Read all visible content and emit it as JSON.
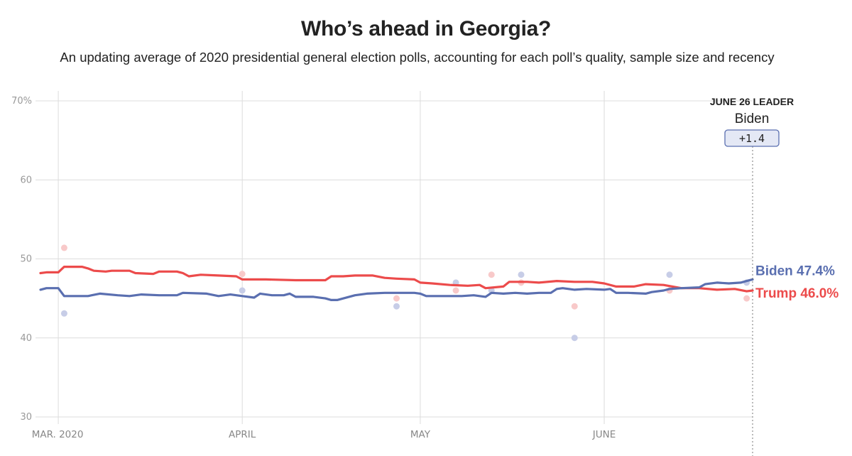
{
  "header": {
    "title": "Who’s ahead in Georgia?",
    "subtitle": "An updating average of 2020 presidential general election polls, accounting for each poll’s quality, sample size and recency"
  },
  "leader_box": {
    "heading": "JUNE 26 LEADER",
    "name": "Biden",
    "margin": "+1.4"
  },
  "colors": {
    "biden": "#5a6fb0",
    "trump": "#ec4b4b",
    "biden_poll": "#c7cde7",
    "trump_poll": "#f8c9c9",
    "grid": "#dcdcdc",
    "box_fill": "#e4e8f5"
  },
  "chart_data": {
    "type": "line",
    "title": "Who’s ahead in Georgia?",
    "ylim": [
      30,
      70
    ],
    "yticks": [
      30,
      40,
      50,
      60,
      70
    ],
    "ytick_labels": [
      "30",
      "40",
      "50",
      "60",
      "70%"
    ],
    "xlim": [
      "2020-02-27",
      "2020-06-26"
    ],
    "xticks": [
      {
        "date": "2020-03-01",
        "label": "MAR. 2020"
      },
      {
        "date": "2020-04-01",
        "label": "APRIL"
      },
      {
        "date": "2020-05-01",
        "label": "MAY"
      },
      {
        "date": "2020-06-01",
        "label": "JUNE"
      }
    ],
    "series": [
      {
        "name": "Biden",
        "end_label": "Biden 47.4%",
        "points": [
          [
            "2020-02-27",
            46.1
          ],
          [
            "2020-02-28",
            46.3
          ],
          [
            "2020-03-01",
            46.3
          ],
          [
            "2020-03-02",
            45.3
          ],
          [
            "2020-03-06",
            45.3
          ],
          [
            "2020-03-08",
            45.6
          ],
          [
            "2020-03-11",
            45.4
          ],
          [
            "2020-03-13",
            45.3
          ],
          [
            "2020-03-15",
            45.5
          ],
          [
            "2020-03-18",
            45.4
          ],
          [
            "2020-03-21",
            45.4
          ],
          [
            "2020-03-22",
            45.7
          ],
          [
            "2020-03-26",
            45.6
          ],
          [
            "2020-03-28",
            45.3
          ],
          [
            "2020-03-30",
            45.5
          ],
          [
            "2020-04-01",
            45.3
          ],
          [
            "2020-04-03",
            45.1
          ],
          [
            "2020-04-04",
            45.6
          ],
          [
            "2020-04-06",
            45.4
          ],
          [
            "2020-04-08",
            45.4
          ],
          [
            "2020-04-09",
            45.6
          ],
          [
            "2020-04-10",
            45.2
          ],
          [
            "2020-04-13",
            45.2
          ],
          [
            "2020-04-15",
            45.0
          ],
          [
            "2020-04-16",
            44.8
          ],
          [
            "2020-04-17",
            44.8
          ],
          [
            "2020-04-20",
            45.4
          ],
          [
            "2020-04-22",
            45.6
          ],
          [
            "2020-04-25",
            45.7
          ],
          [
            "2020-04-30",
            45.7
          ],
          [
            "2020-05-01",
            45.6
          ],
          [
            "2020-05-02",
            45.3
          ],
          [
            "2020-05-05",
            45.3
          ],
          [
            "2020-05-08",
            45.3
          ],
          [
            "2020-05-10",
            45.4
          ],
          [
            "2020-05-12",
            45.2
          ],
          [
            "2020-05-13",
            45.7
          ],
          [
            "2020-05-15",
            45.6
          ],
          [
            "2020-05-17",
            45.7
          ],
          [
            "2020-05-19",
            45.6
          ],
          [
            "2020-05-21",
            45.7
          ],
          [
            "2020-05-23",
            45.7
          ],
          [
            "2020-05-24",
            46.2
          ],
          [
            "2020-05-25",
            46.3
          ],
          [
            "2020-05-27",
            46.1
          ],
          [
            "2020-05-29",
            46.2
          ],
          [
            "2020-06-01",
            46.1
          ],
          [
            "2020-06-02",
            46.2
          ],
          [
            "2020-06-03",
            45.7
          ],
          [
            "2020-06-05",
            45.7
          ],
          [
            "2020-06-08",
            45.6
          ],
          [
            "2020-06-09",
            45.8
          ],
          [
            "2020-06-11",
            46.0
          ],
          [
            "2020-06-12",
            46.2
          ],
          [
            "2020-06-14",
            46.3
          ],
          [
            "2020-06-17",
            46.4
          ],
          [
            "2020-06-18",
            46.8
          ],
          [
            "2020-06-20",
            47.0
          ],
          [
            "2020-06-22",
            46.9
          ],
          [
            "2020-06-24",
            47.0
          ],
          [
            "2020-06-25",
            47.2
          ],
          [
            "2020-06-26",
            47.4
          ]
        ]
      },
      {
        "name": "Trump",
        "end_label": "Trump 46.0%",
        "points": [
          [
            "2020-02-27",
            48.2
          ],
          [
            "2020-02-28",
            48.3
          ],
          [
            "2020-03-01",
            48.3
          ],
          [
            "2020-03-02",
            49.0
          ],
          [
            "2020-03-05",
            49.0
          ],
          [
            "2020-03-06",
            48.8
          ],
          [
            "2020-03-07",
            48.5
          ],
          [
            "2020-03-09",
            48.4
          ],
          [
            "2020-03-10",
            48.5
          ],
          [
            "2020-03-13",
            48.5
          ],
          [
            "2020-03-14",
            48.2
          ],
          [
            "2020-03-17",
            48.1
          ],
          [
            "2020-03-18",
            48.4
          ],
          [
            "2020-03-21",
            48.4
          ],
          [
            "2020-03-22",
            48.2
          ],
          [
            "2020-03-23",
            47.8
          ],
          [
            "2020-03-25",
            48.0
          ],
          [
            "2020-03-28",
            47.9
          ],
          [
            "2020-03-31",
            47.8
          ],
          [
            "2020-04-01",
            47.4
          ],
          [
            "2020-04-05",
            47.4
          ],
          [
            "2020-04-10",
            47.3
          ],
          [
            "2020-04-15",
            47.3
          ],
          [
            "2020-04-16",
            47.8
          ],
          [
            "2020-04-18",
            47.8
          ],
          [
            "2020-04-20",
            47.9
          ],
          [
            "2020-04-23",
            47.9
          ],
          [
            "2020-04-25",
            47.6
          ],
          [
            "2020-04-27",
            47.5
          ],
          [
            "2020-04-30",
            47.4
          ],
          [
            "2020-05-01",
            47.0
          ],
          [
            "2020-05-03",
            46.9
          ],
          [
            "2020-05-06",
            46.7
          ],
          [
            "2020-05-09",
            46.6
          ],
          [
            "2020-05-11",
            46.7
          ],
          [
            "2020-05-12",
            46.3
          ],
          [
            "2020-05-15",
            46.5
          ],
          [
            "2020-05-16",
            47.1
          ],
          [
            "2020-05-19",
            47.1
          ],
          [
            "2020-05-21",
            47.0
          ],
          [
            "2020-05-24",
            47.2
          ],
          [
            "2020-05-27",
            47.1
          ],
          [
            "2020-05-30",
            47.1
          ],
          [
            "2020-06-01",
            46.9
          ],
          [
            "2020-06-03",
            46.5
          ],
          [
            "2020-06-06",
            46.5
          ],
          [
            "2020-06-08",
            46.8
          ],
          [
            "2020-06-11",
            46.7
          ],
          [
            "2020-06-14",
            46.3
          ],
          [
            "2020-06-17",
            46.3
          ],
          [
            "2020-06-20",
            46.1
          ],
          [
            "2020-06-23",
            46.2
          ],
          [
            "2020-06-25",
            45.9
          ],
          [
            "2020-06-26",
            46.0
          ]
        ]
      }
    ],
    "polls": {
      "Biden": [
        [
          "2020-03-02",
          43.1
        ],
        [
          "2020-04-01",
          46.0
        ],
        [
          "2020-04-27",
          44.0
        ],
        [
          "2020-05-07",
          47.0
        ],
        [
          "2020-05-13",
          46.0
        ],
        [
          "2020-05-18",
          48.0
        ],
        [
          "2020-05-27",
          40.0
        ],
        [
          "2020-06-12",
          48.0
        ],
        [
          "2020-06-25",
          47.0
        ]
      ],
      "Trump": [
        [
          "2020-03-02",
          51.4
        ],
        [
          "2020-04-01",
          48.1
        ],
        [
          "2020-04-27",
          45.0
        ],
        [
          "2020-05-07",
          46.0
        ],
        [
          "2020-05-13",
          48.0
        ],
        [
          "2020-05-18",
          47.0
        ],
        [
          "2020-05-27",
          44.0
        ],
        [
          "2020-06-12",
          46.0
        ],
        [
          "2020-06-25",
          45.0
        ]
      ]
    }
  }
}
